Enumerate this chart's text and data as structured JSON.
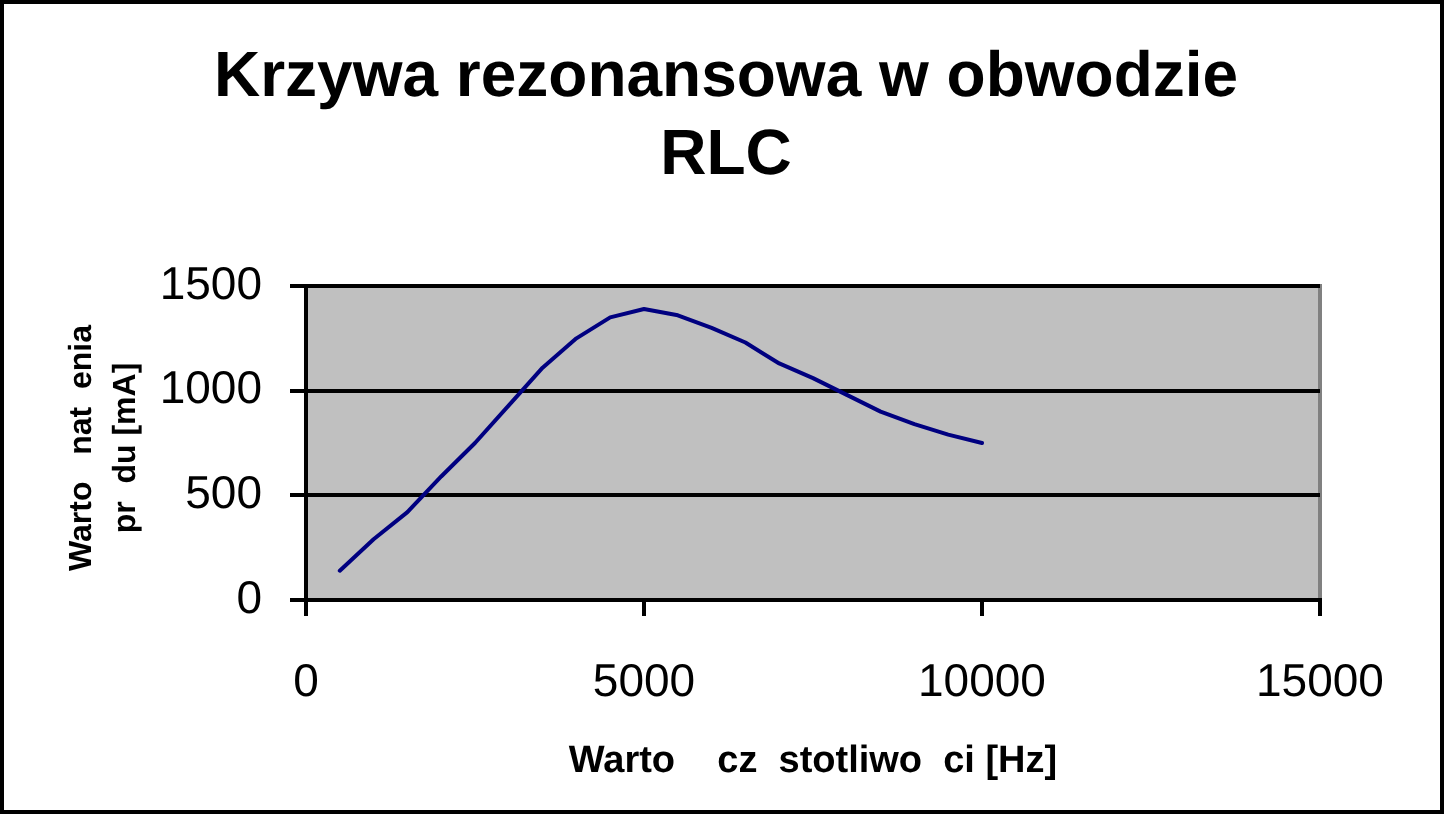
{
  "chart_data": {
    "type": "line",
    "title": "Krzywa rezonansowa w obwodzie RLC",
    "xlabel": "Warto    cz  stotliwo  ci [Hz]",
    "ylabel": "Warto   nat  enia pr  du [mA]",
    "x": [
      500,
      1000,
      1500,
      2000,
      2500,
      3000,
      3500,
      4000,
      4500,
      5000,
      5500,
      6000,
      6500,
      7000,
      7500,
      8000,
      8500,
      9000,
      9500,
      10000
    ],
    "values": [
      140,
      290,
      420,
      590,
      750,
      930,
      1110,
      1250,
      1350,
      1390,
      1360,
      1300,
      1230,
      1130,
      1060,
      980,
      900,
      840,
      790,
      750
    ],
    "color": "#000080",
    "xlim": [
      0,
      15000
    ],
    "xticks": [
      0,
      5000,
      10000,
      15000
    ],
    "ylim": [
      0,
      1500
    ],
    "yticks": [
      0,
      500,
      1000,
      1500
    ],
    "grid": "y",
    "legend": false,
    "marker": "none"
  }
}
